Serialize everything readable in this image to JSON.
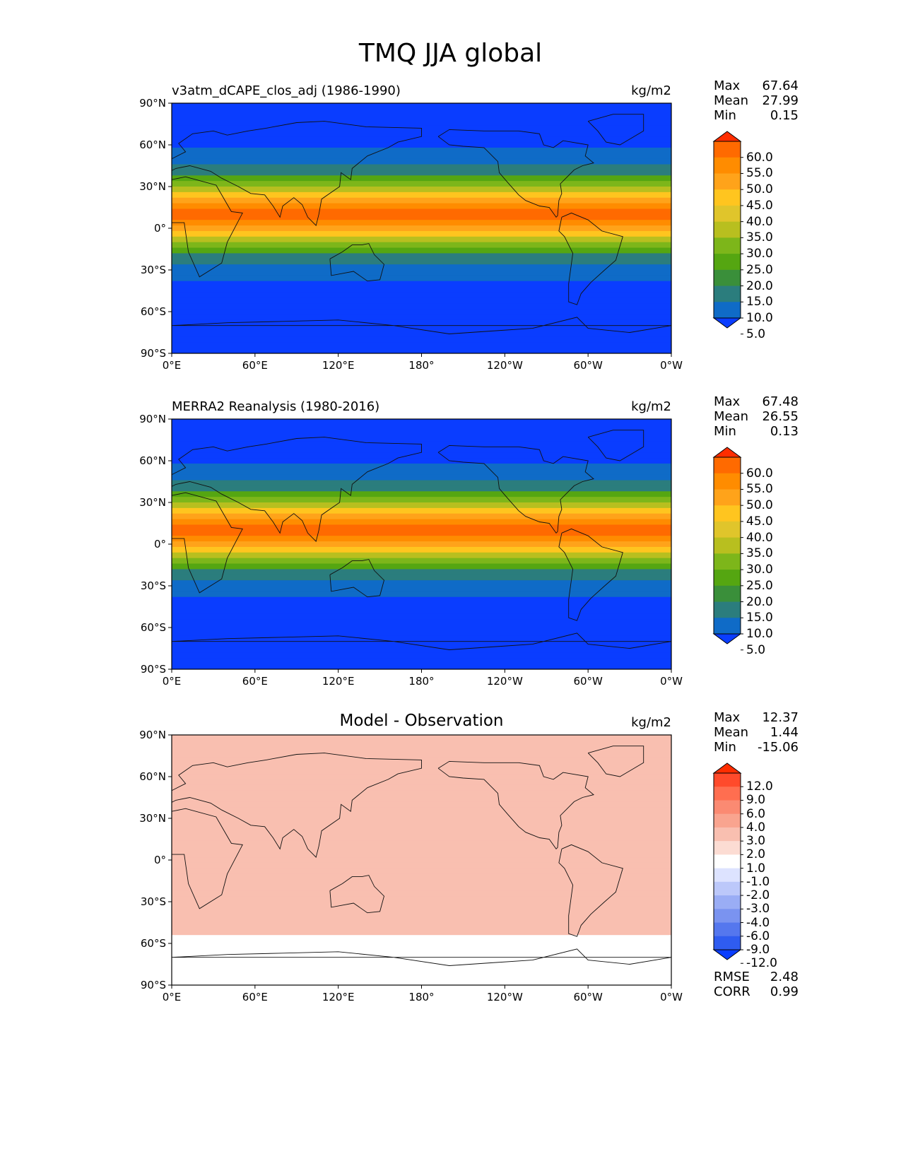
{
  "title": "TMQ JJA global",
  "lat_ticks": [
    "90°N",
    "60°N",
    "30°N",
    "0°",
    "30°S",
    "60°S",
    "90°S"
  ],
  "lon_ticks": [
    "0°E",
    "60°E",
    "120°E",
    "180°",
    "120°W",
    "60°W",
    "0°W"
  ],
  "panels": [
    {
      "title": "v3atm_dCAPE_clos_adj (1986-1990)",
      "units": "kg/m2",
      "stats": [
        {
          "name": "Max",
          "value": "67.64"
        },
        {
          "name": "Mean",
          "value": "27.99"
        },
        {
          "name": "Min",
          "value": "0.15"
        }
      ],
      "colorbar": {
        "labels": [
          "60.0",
          "55.0",
          "50.0",
          "45.0",
          "40.0",
          "35.0",
          "30.0",
          "25.0",
          "20.0",
          "15.0",
          "10.0",
          "5.0"
        ],
        "colors": [
          "#ff2d00",
          "#ff6a00",
          "#ff8c00",
          "#ffa31a",
          "#ffc51f",
          "#e0c52b",
          "#b8bf1f",
          "#7db61a",
          "#55a611",
          "#3a8f3a",
          "#2b7d7d",
          "#0f6bc7",
          "#0a3dff"
        ]
      }
    },
    {
      "title": "MERRA2 Reanalysis (1980-2016)",
      "units": "kg/m2",
      "stats": [
        {
          "name": "Max",
          "value": "67.48"
        },
        {
          "name": "Mean",
          "value": "26.55"
        },
        {
          "name": "Min",
          "value": "0.13"
        }
      ],
      "colorbar": {
        "labels": [
          "60.0",
          "55.0",
          "50.0",
          "45.0",
          "40.0",
          "35.0",
          "30.0",
          "25.0",
          "20.0",
          "15.0",
          "10.0",
          "5.0"
        ],
        "colors": [
          "#ff2d00",
          "#ff6a00",
          "#ff8c00",
          "#ffa31a",
          "#ffc51f",
          "#e0c52b",
          "#b8bf1f",
          "#7db61a",
          "#55a611",
          "#3a8f3a",
          "#2b7d7d",
          "#0f6bc7",
          "#0a3dff"
        ]
      }
    },
    {
      "title": "Model - Observation",
      "units": "kg/m2",
      "stats": [
        {
          "name": "Max",
          "value": "12.37"
        },
        {
          "name": "Mean",
          "value": "1.44"
        },
        {
          "name": "Min",
          "value": "-15.06"
        }
      ],
      "colorbar": {
        "labels": [
          "12.0",
          "9.0",
          "6.0",
          "4.0",
          "3.0",
          "2.0",
          "1.0",
          "-1.0",
          "-2.0",
          "-3.0",
          "-4.0",
          "-6.0",
          "-9.0",
          "-12.0"
        ],
        "colors": [
          "#ff2d00",
          "#ff4a2b",
          "#ff6e50",
          "#fb8a72",
          "#f9a48f",
          "#f9bfb0",
          "#fcdcd3",
          "#ffffff",
          "#dde3ff",
          "#bcc8fa",
          "#9aadf5",
          "#7a93f0",
          "#5577ee",
          "#2f5cf0",
          "#0a3dff"
        ]
      },
      "footer_stats": [
        {
          "name": "RMSE",
          "value": "2.48"
        },
        {
          "name": "CORR",
          "value": "0.99"
        }
      ]
    }
  ]
}
